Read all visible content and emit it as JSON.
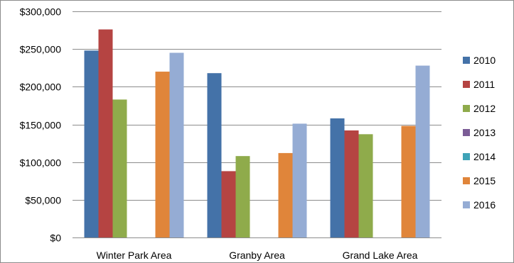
{
  "chart_data": {
    "type": "bar",
    "title": "",
    "xlabel": "",
    "ylabel": "",
    "categories": [
      "Winter Park Area",
      "Granby Area",
      "Grand Lake Area"
    ],
    "ylim": [
      0,
      300000
    ],
    "yticks": [
      0,
      50000,
      100000,
      150000,
      200000,
      250000,
      300000
    ],
    "ytick_labels": [
      "$0",
      "$50,000",
      "$100,000",
      "$150,000",
      "$200,000",
      "$250,000",
      "$300,000"
    ],
    "grid": "horizontal",
    "legend_position": "right",
    "series": [
      {
        "name": "2010",
        "color": "#4472a8",
        "values": [
          248000,
          218000,
          158000
        ]
      },
      {
        "name": "2011",
        "color": "#b54442",
        "values": [
          276000,
          88000,
          142000
        ]
      },
      {
        "name": "2012",
        "color": "#8fab4b",
        "values": [
          183000,
          108000,
          137000
        ]
      },
      {
        "name": "2013",
        "color": "#7b5c96",
        "values": [
          0,
          0,
          0
        ]
      },
      {
        "name": "2014",
        "color": "#3fa3b7",
        "values": [
          0,
          0,
          0
        ]
      },
      {
        "name": "2015",
        "color": "#e0853a",
        "values": [
          220000,
          112000,
          148000
        ]
      },
      {
        "name": "2016",
        "color": "#95acd4",
        "values": [
          245000,
          151000,
          228000
        ]
      }
    ]
  }
}
